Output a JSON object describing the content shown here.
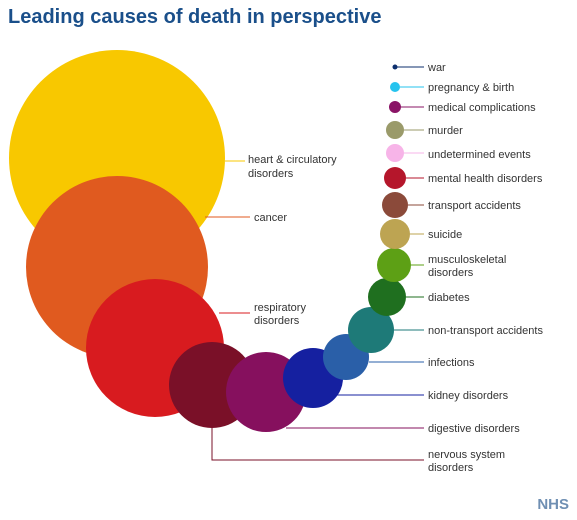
{
  "chart_data": {
    "type": "bubble",
    "title": "Leading causes of death in perspective",
    "legend_placement": "right",
    "series": [
      {
        "label": "war",
        "color": "#0d2f6e"
      },
      {
        "label": "pregnancy & birth",
        "color": "#26c3ee"
      },
      {
        "label": "medical complications",
        "color": "#8a1466"
      },
      {
        "label": "murder",
        "color": "#9a9a6a"
      },
      {
        "label": "undetermined events",
        "color": "#f7b4e8"
      },
      {
        "label": "mental health disorders",
        "color": "#b5162b"
      },
      {
        "label": "transport accidents",
        "color": "#8b4a3a"
      },
      {
        "label": "suicide",
        "color": "#bda452"
      },
      {
        "label": "musculoskeletal disorders",
        "color": "#5da015"
      },
      {
        "label": "diabetes",
        "color": "#1f6f1f"
      },
      {
        "label": "non-transport accidents",
        "color": "#1e7a78"
      },
      {
        "label": "infections",
        "color": "#2a5fa8"
      },
      {
        "label": "kidney disorders",
        "color": "#1520a0"
      },
      {
        "label": "digestive disorders",
        "color": "#86105e"
      },
      {
        "label": "nervous system disorders",
        "color": "#7a1028"
      },
      {
        "label": "respiratory disorders",
        "color": "#d81b1f"
      },
      {
        "label": "cancer",
        "color": "#e05a1f"
      },
      {
        "label": "heart & circulatory disorders",
        "color": "#f8c800"
      }
    ]
  },
  "labels": {
    "war": "war",
    "pregnancy": "pregnancy & birth",
    "medical": "medical complications",
    "murder": "murder",
    "undetermined": "undetermined events",
    "mental": "mental health disorders",
    "transport": "transport accidents",
    "suicide": "suicide",
    "musculoskeletal_1": "musculoskeletal",
    "musculoskeletal_2": "disorders",
    "diabetes": "diabetes",
    "nontransport": "non-transport accidents",
    "infections": "infections",
    "kidney": "kidney disorders",
    "digestive": "digestive disorders",
    "nervous_1": "nervous system",
    "nervous_2": "disorders",
    "respiratory_1": "respiratory",
    "respiratory_2": "disorders",
    "cancer": "cancer",
    "heart_1": "heart & circulatory",
    "heart_2": "disorders"
  },
  "footer": {
    "logo_text": "NHS"
  }
}
